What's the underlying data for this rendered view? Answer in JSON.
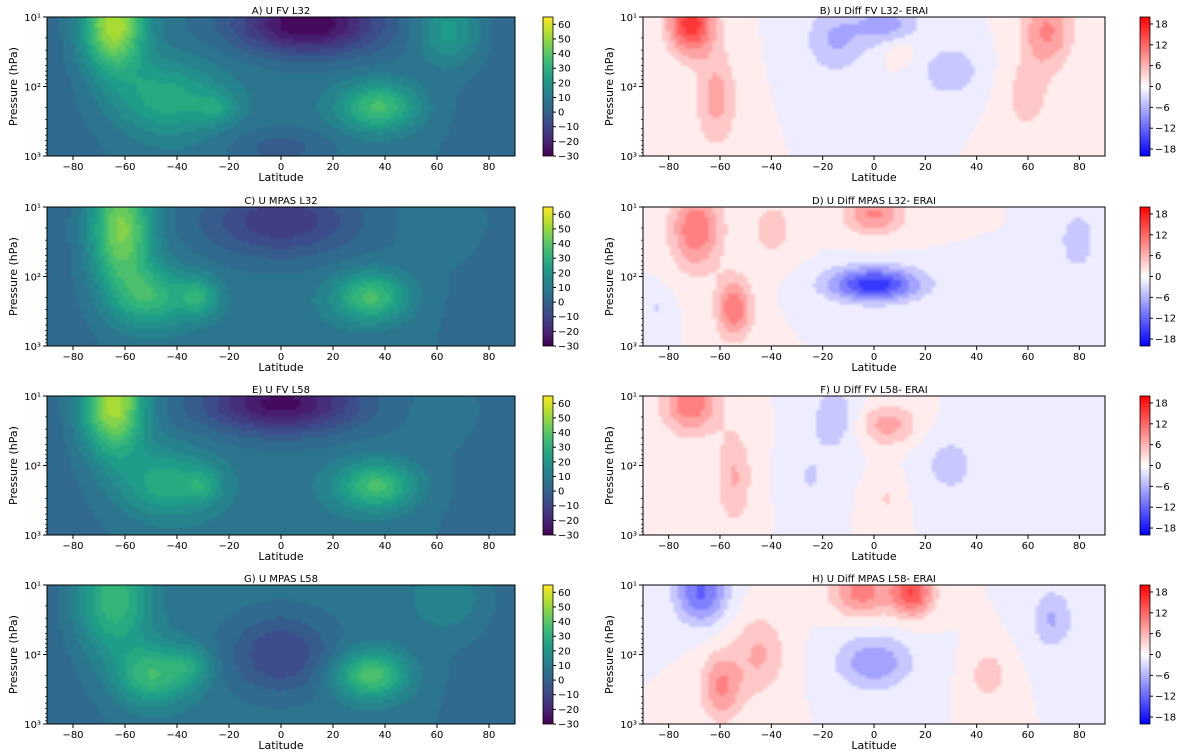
{
  "colors": {
    "viridis": [
      "#440154",
      "#482878",
      "#3e4989",
      "#31688e",
      "#26828e",
      "#1f9e89",
      "#35b779",
      "#6ece58",
      "#b5de2b",
      "#fde725"
    ],
    "bwr": [
      "#0000ff",
      "#ffffff",
      "#ff0000"
    ]
  },
  "chart_data": [
    {
      "type": "heatmap",
      "panel": "A",
      "title": "A) U FV L32",
      "colormap": "viridis",
      "xlabel": "Latitude",
      "ylabel": "Pressure (hPa)",
      "xlim": [
        -90,
        90
      ],
      "ylim": [
        1000,
        10
      ],
      "yscale": "log",
      "xticks": [
        -80,
        -60,
        -40,
        -20,
        0,
        20,
        40,
        60,
        80
      ],
      "yticks": [
        {
          "value": 1000,
          "label": "10³"
        },
        {
          "value": 100,
          "label": "10²"
        },
        {
          "value": 10,
          "label": "10¹"
        }
      ],
      "colorbar_ticks": [
        60,
        50,
        40,
        30,
        20,
        10,
        0,
        -10,
        -20,
        -30
      ],
      "colorbar_range": [
        -30,
        65
      ],
      "features": [
        {
          "lat": -65,
          "p": 12,
          "amp": 50,
          "wlat": 12,
          "wp": 0.7
        },
        {
          "lat": -45,
          "p": 150,
          "amp": 22,
          "wlat": 20,
          "wp": 0.55
        },
        {
          "lat": -25,
          "p": 200,
          "amp": 12,
          "wlat": 8,
          "wp": 0.25
        },
        {
          "lat": 38,
          "p": 200,
          "amp": 30,
          "wlat": 15,
          "wp": 0.35
        },
        {
          "lat": 65,
          "p": 15,
          "amp": 18,
          "wlat": 12,
          "wp": 0.5
        },
        {
          "lat": 10,
          "p": 12,
          "amp": -38,
          "wlat": 28,
          "wp": 0.45
        },
        {
          "lat": 0,
          "p": 800,
          "amp": -10,
          "wlat": 20,
          "wp": 0.3
        }
      ]
    },
    {
      "type": "heatmap",
      "panel": "B",
      "title": "B) U Diff FV L32- ERAI",
      "colormap": "bwr",
      "xlabel": "Latitude",
      "ylabel": "Pressure (hPa)",
      "xlim": [
        -90,
        90
      ],
      "ylim": [
        1000,
        10
      ],
      "yscale": "log",
      "xticks": [
        -80,
        -60,
        -40,
        -20,
        0,
        20,
        40,
        60,
        80
      ],
      "yticks": [
        {
          "value": 1000,
          "label": "10³"
        },
        {
          "value": 100,
          "label": "10²"
        },
        {
          "value": 10,
          "label": "10¹"
        }
      ],
      "colorbar_ticks": [
        18,
        12,
        6,
        0,
        -6,
        -12,
        -18
      ],
      "colorbar_range": [
        -20,
        20
      ],
      "features": [
        {
          "lat": -72,
          "p": 12,
          "amp": 16,
          "wlat": 9,
          "wp": 0.45
        },
        {
          "lat": -62,
          "p": 150,
          "amp": 7,
          "wlat": 8,
          "wp": 0.7
        },
        {
          "lat": -15,
          "p": 20,
          "amp": -6,
          "wlat": 12,
          "wp": 0.5
        },
        {
          "lat": 5,
          "p": 12,
          "amp": -7,
          "wlat": 12,
          "wp": 0.3
        },
        {
          "lat": 30,
          "p": 60,
          "amp": -5,
          "wlat": 12,
          "wp": 0.4
        },
        {
          "lat": 10,
          "p": 30,
          "amp": 3,
          "wlat": 6,
          "wp": 0.2
        },
        {
          "lat": 68,
          "p": 15,
          "amp": 9,
          "wlat": 10,
          "wp": 0.55
        },
        {
          "lat": 60,
          "p": 150,
          "amp": 4,
          "wlat": 10,
          "wp": 0.6
        }
      ]
    },
    {
      "type": "heatmap",
      "panel": "C",
      "title": "C) U MPAS L32",
      "colormap": "viridis",
      "xlabel": "Latitude",
      "ylabel": "Pressure (hPa)",
      "xlim": [
        -90,
        90
      ],
      "ylim": [
        1000,
        10
      ],
      "yscale": "log",
      "xticks": [
        -80,
        -60,
        -40,
        -20,
        0,
        20,
        40,
        60,
        80
      ],
      "yticks": [
        {
          "value": 1000,
          "label": "10³"
        },
        {
          "value": 100,
          "label": "10²"
        },
        {
          "value": 10,
          "label": "10¹"
        }
      ],
      "colorbar_ticks": [
        60,
        50,
        40,
        30,
        20,
        10,
        0,
        -10,
        -20,
        -30
      ],
      "colorbar_range": [
        -30,
        65
      ],
      "features": [
        {
          "lat": -62,
          "p": 20,
          "amp": 42,
          "wlat": 12,
          "wp": 0.9
        },
        {
          "lat": -50,
          "p": 200,
          "amp": 25,
          "wlat": 14,
          "wp": 0.45
        },
        {
          "lat": -32,
          "p": 200,
          "amp": 20,
          "wlat": 8,
          "wp": 0.3
        },
        {
          "lat": 35,
          "p": 200,
          "amp": 30,
          "wlat": 14,
          "wp": 0.35
        },
        {
          "lat": 0,
          "p": 15,
          "amp": -22,
          "wlat": 30,
          "wp": 0.55
        },
        {
          "lat": 65,
          "p": 15,
          "amp": 5,
          "wlat": 15,
          "wp": 0.5
        }
      ]
    },
    {
      "type": "heatmap",
      "panel": "D",
      "title": "D) U Diff MPAS L32- ERAI",
      "colormap": "bwr",
      "xlabel": "Latitude",
      "ylabel": "Pressure (hPa)",
      "xlim": [
        -90,
        90
      ],
      "ylim": [
        1000,
        10
      ],
      "yscale": "log",
      "xticks": [
        -80,
        -60,
        -40,
        -20,
        0,
        20,
        40,
        60,
        80
      ],
      "yticks": [
        {
          "value": 1000,
          "label": "10³"
        },
        {
          "value": 100,
          "label": "10²"
        },
        {
          "value": 10,
          "label": "10¹"
        }
      ],
      "colorbar_ticks": [
        18,
        12,
        6,
        0,
        -6,
        -12,
        -18
      ],
      "colorbar_range": [
        -20,
        20
      ],
      "features": [
        {
          "lat": -70,
          "p": 20,
          "amp": 11,
          "wlat": 10,
          "wp": 0.6
        },
        {
          "lat": -55,
          "p": 300,
          "amp": 11,
          "wlat": 7,
          "wp": 0.45
        },
        {
          "lat": 0,
          "p": 130,
          "amp": -16,
          "wlat": 18,
          "wp": 0.25
        },
        {
          "lat": 0,
          "p": 12,
          "amp": 9,
          "wlat": 12,
          "wp": 0.3
        },
        {
          "lat": 80,
          "p": 30,
          "amp": -5,
          "wlat": 7,
          "wp": 0.45
        },
        {
          "lat": -40,
          "p": 20,
          "amp": 4,
          "wlat": 10,
          "wp": 0.5
        },
        {
          "lat": -85,
          "p": 300,
          "amp": -3,
          "wlat": 5,
          "wp": 0.3
        }
      ]
    },
    {
      "type": "heatmap",
      "panel": "E",
      "title": "E) U FV L58",
      "colormap": "viridis",
      "xlabel": "Latitude",
      "ylabel": "Pressure (hPa)",
      "xlim": [
        -90,
        90
      ],
      "ylim": [
        1000,
        10
      ],
      "yscale": "log",
      "xticks": [
        -80,
        -60,
        -40,
        -20,
        0,
        20,
        40,
        60,
        80
      ],
      "yticks": [
        {
          "value": 1000,
          "label": "10³"
        },
        {
          "value": 100,
          "label": "10²"
        },
        {
          "value": 10,
          "label": "10¹"
        }
      ],
      "colorbar_ticks": [
        60,
        50,
        40,
        30,
        20,
        10,
        0,
        -10,
        -20,
        -30
      ],
      "colorbar_range": [
        -30,
        65
      ],
      "features": [
        {
          "lat": -65,
          "p": 12,
          "amp": 50,
          "wlat": 12,
          "wp": 0.75
        },
        {
          "lat": -45,
          "p": 180,
          "amp": 22,
          "wlat": 18,
          "wp": 0.5
        },
        {
          "lat": -30,
          "p": 200,
          "amp": 12,
          "wlat": 7,
          "wp": 0.25
        },
        {
          "lat": 37,
          "p": 200,
          "amp": 30,
          "wlat": 15,
          "wp": 0.35
        },
        {
          "lat": 0,
          "p": 12,
          "amp": -35,
          "wlat": 30,
          "wp": 0.45
        },
        {
          "lat": 65,
          "p": 15,
          "amp": 3,
          "wlat": 15,
          "wp": 0.5
        }
      ]
    },
    {
      "type": "heatmap",
      "panel": "F",
      "title": "F) U Diff FV L58- ERAI",
      "colormap": "bwr",
      "xlabel": "Latitude",
      "ylabel": "Pressure (hPa)",
      "xlim": [
        -90,
        90
      ],
      "ylim": [
        1000,
        10
      ],
      "yscale": "log",
      "xticks": [
        -80,
        -60,
        -40,
        -20,
        0,
        20,
        40,
        60,
        80
      ],
      "yticks": [
        {
          "value": 1000,
          "label": "10³"
        },
        {
          "value": 100,
          "label": "10²"
        },
        {
          "value": 10,
          "label": "10¹"
        }
      ],
      "colorbar_ticks": [
        18,
        12,
        6,
        0,
        -6,
        -12,
        -18
      ],
      "colorbar_range": [
        -20,
        20
      ],
      "features": [
        {
          "lat": -72,
          "p": 12,
          "amp": 11,
          "wlat": 11,
          "wp": 0.45
        },
        {
          "lat": -55,
          "p": 150,
          "amp": 6,
          "wlat": 7,
          "wp": 0.7
        },
        {
          "lat": -15,
          "p": 20,
          "amp": -5,
          "wlat": 10,
          "wp": 0.5
        },
        {
          "lat": 5,
          "p": 25,
          "amp": 7,
          "wlat": 12,
          "wp": 0.3
        },
        {
          "lat": 30,
          "p": 100,
          "amp": -4,
          "wlat": 12,
          "wp": 0.5
        },
        {
          "lat": -25,
          "p": 150,
          "amp": -3,
          "wlat": 8,
          "wp": 0.5
        },
        {
          "lat": 5,
          "p": 300,
          "amp": 3,
          "wlat": 6,
          "wp": 0.4
        }
      ]
    },
    {
      "type": "heatmap",
      "panel": "G",
      "title": "G) U MPAS L58",
      "colormap": "viridis",
      "xlabel": "Latitude",
      "ylabel": "Pressure (hPa)",
      "xlim": [
        -90,
        90
      ],
      "ylim": [
        1000,
        10
      ],
      "yscale": "log",
      "xticks": [
        -80,
        -60,
        -40,
        -20,
        0,
        20,
        40,
        60,
        80
      ],
      "yticks": [
        {
          "value": 1000,
          "label": "10³"
        },
        {
          "value": 100,
          "label": "10²"
        },
        {
          "value": 10,
          "label": "10¹"
        }
      ],
      "colorbar_ticks": [
        60,
        50,
        40,
        30,
        20,
        10,
        0,
        -10,
        -20,
        -30
      ],
      "colorbar_range": [
        -30,
        65
      ],
      "features": [
        {
          "lat": -65,
          "p": 15,
          "amp": 30,
          "wlat": 14,
          "wp": 0.8
        },
        {
          "lat": -50,
          "p": 200,
          "amp": 28,
          "wlat": 14,
          "wp": 0.45
        },
        {
          "lat": -35,
          "p": 150,
          "amp": 14,
          "wlat": 8,
          "wp": 0.3
        },
        {
          "lat": 35,
          "p": 200,
          "amp": 32,
          "wlat": 14,
          "wp": 0.35
        },
        {
          "lat": 0,
          "p": 100,
          "amp": -18,
          "wlat": 20,
          "wp": 0.6
        },
        {
          "lat": 65,
          "p": 15,
          "amp": 10,
          "wlat": 15,
          "wp": 0.5
        }
      ]
    },
    {
      "type": "heatmap",
      "panel": "H",
      "title": "H) U Diff MPAS L58- ERAI",
      "colormap": "bwr",
      "xlabel": "Latitude",
      "ylabel": "Pressure (hPa)",
      "xlim": [
        -90,
        90
      ],
      "ylim": [
        1000,
        10
      ],
      "yscale": "log",
      "xticks": [
        -80,
        -60,
        -40,
        -20,
        0,
        20,
        40,
        60,
        80
      ],
      "yticks": [
        {
          "value": 1000,
          "label": "10³"
        },
        {
          "value": 100,
          "label": "10²"
        },
        {
          "value": 10,
          "label": "10¹"
        }
      ],
      "colorbar_ticks": [
        18,
        12,
        6,
        0,
        -6,
        -12,
        -18
      ],
      "colorbar_range": [
        -20,
        20
      ],
      "features": [
        {
          "lat": -68,
          "p": 12,
          "amp": -12,
          "wlat": 10,
          "wp": 0.45
        },
        {
          "lat": -60,
          "p": 300,
          "amp": 9,
          "wlat": 8,
          "wp": 0.5
        },
        {
          "lat": -45,
          "p": 100,
          "amp": 6,
          "wlat": 10,
          "wp": 0.6
        },
        {
          "lat": -5,
          "p": 12,
          "amp": 10,
          "wlat": 12,
          "wp": 0.35
        },
        {
          "lat": 15,
          "p": 12,
          "amp": 14,
          "wlat": 8,
          "wp": 0.35
        },
        {
          "lat": 0,
          "p": 130,
          "amp": -8,
          "wlat": 15,
          "wp": 0.4
        },
        {
          "lat": 70,
          "p": 30,
          "amp": -6,
          "wlat": 8,
          "wp": 0.45
        },
        {
          "lat": 45,
          "p": 200,
          "amp": 5,
          "wlat": 7,
          "wp": 0.35
        }
      ]
    }
  ]
}
